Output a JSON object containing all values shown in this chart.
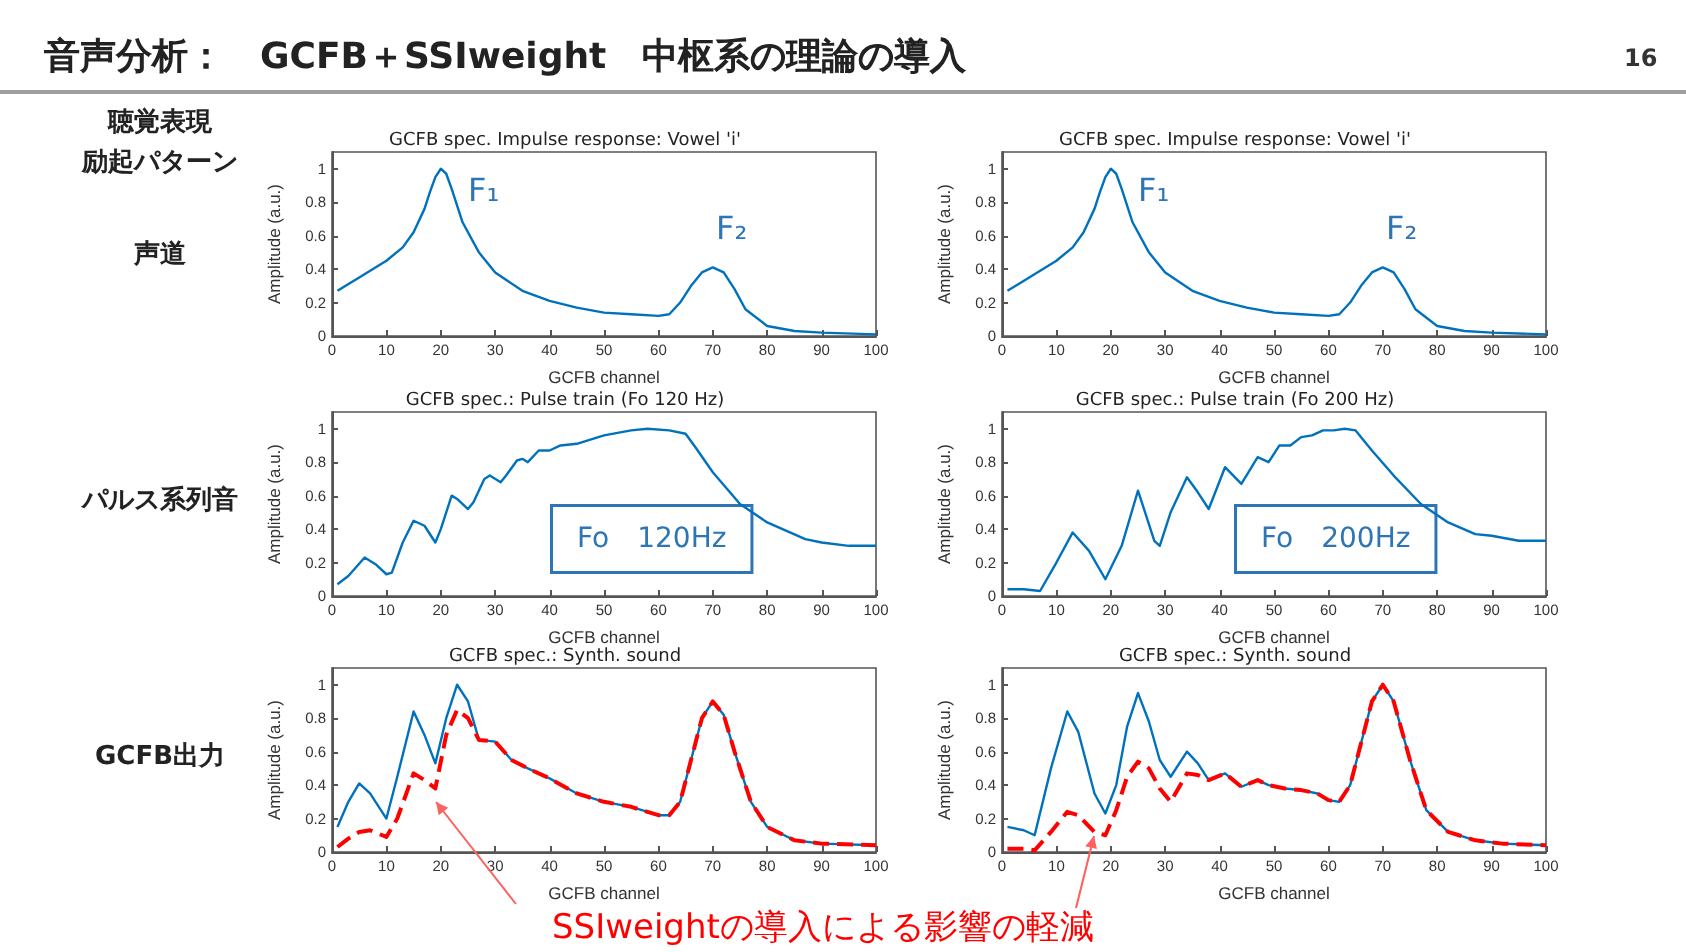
{
  "chart_data": [
    {
      "type": "line",
      "title": "GCFB spec. Impulse response: Vowel 'i'",
      "xlabel": "GCFB channel",
      "ylabel": "Amplitude (a.u.)",
      "xlim": [
        0,
        100
      ],
      "xticks": [
        0,
        10,
        20,
        30,
        40,
        50,
        60,
        70,
        80,
        90,
        100
      ],
      "ylim": [
        0,
        1.1
      ],
      "yticks": [
        0,
        0.2,
        0.4,
        0.6,
        0.8,
        1
      ],
      "grid": false,
      "marker": "none",
      "annotations": [
        "音声分析：　GCFB＋SSIweight　中枢系の理論の導入",
        "16",
        "聴覚表現",
        "励起パターン",
        "声道",
        "F₁",
        "F₂"
      ],
      "series": [
        {
          "color": "#0072bd",
          "line_style": "solid",
          "x": [
            1,
            5,
            10,
            13,
            15,
            17,
            18,
            19,
            20,
            21,
            22,
            24,
            27,
            30,
            35,
            40,
            45,
            50,
            55,
            60,
            62,
            64,
            66,
            68,
            70,
            72,
            74,
            76,
            80,
            85,
            90,
            100
          ],
          "values": [
            0.27,
            0.35,
            0.45,
            0.53,
            0.62,
            0.76,
            0.86,
            0.95,
            1.0,
            0.97,
            0.88,
            0.68,
            0.5,
            0.38,
            0.27,
            0.21,
            0.17,
            0.14,
            0.13,
            0.12,
            0.13,
            0.2,
            0.3,
            0.38,
            0.41,
            0.38,
            0.28,
            0.16,
            0.06,
            0.03,
            0.02,
            0.01
          ]
        }
      ]
    },
    {
      "type": "line",
      "title": "GCFB spec. Impulse response: Vowel 'i'",
      "xlabel": "GCFB channel",
      "ylabel": "Amplitude (a.u.)",
      "xlim": [
        0,
        100
      ],
      "xticks": [
        0,
        10,
        20,
        30,
        40,
        50,
        60,
        70,
        80,
        90,
        100
      ],
      "ylim": [
        0,
        1.1
      ],
      "yticks": [
        0,
        0.2,
        0.4,
        0.6,
        0.8,
        1
      ],
      "grid": false,
      "marker": "none",
      "annotations": [
        "F₁",
        "F₂"
      ],
      "series": [
        {
          "color": "#0072bd",
          "line_style": "solid",
          "x": [
            1,
            5,
            10,
            13,
            15,
            17,
            18,
            19,
            20,
            21,
            22,
            24,
            27,
            30,
            35,
            40,
            45,
            50,
            55,
            60,
            62,
            64,
            66,
            68,
            70,
            72,
            74,
            76,
            80,
            85,
            90,
            100
          ],
          "values": [
            0.27,
            0.35,
            0.45,
            0.53,
            0.62,
            0.76,
            0.86,
            0.95,
            1.0,
            0.97,
            0.88,
            0.68,
            0.5,
            0.38,
            0.27,
            0.21,
            0.17,
            0.14,
            0.13,
            0.12,
            0.13,
            0.2,
            0.3,
            0.38,
            0.41,
            0.38,
            0.28,
            0.16,
            0.06,
            0.03,
            0.02,
            0.01
          ]
        }
      ]
    },
    {
      "type": "line",
      "title": "GCFB spec.: Pulse train (Fo 120 Hz)",
      "xlabel": "GCFB channel",
      "ylabel": "Amplitude (a.u.)",
      "xlim": [
        0,
        100
      ],
      "xticks": [
        0,
        10,
        20,
        30,
        40,
        50,
        60,
        70,
        80,
        90,
        100
      ],
      "ylim": [
        0,
        1.1
      ],
      "yticks": [
        0,
        0.2,
        0.4,
        0.6,
        0.8,
        1
      ],
      "grid": false,
      "marker": "none",
      "annotations": [
        "パルス系列音",
        "Fo　120Hz"
      ],
      "series": [
        {
          "color": "#0072bd",
          "line_style": "solid",
          "x": [
            1,
            3,
            6,
            8,
            10,
            11,
            13,
            15,
            17,
            19,
            20,
            22,
            23,
            25,
            26,
            28,
            29,
            31,
            32,
            34,
            35,
            36,
            38,
            40,
            42,
            45,
            50,
            55,
            58,
            62,
            65,
            67,
            70,
            75,
            80,
            87,
            90,
            95,
            100
          ],
          "values": [
            0.07,
            0.12,
            0.23,
            0.19,
            0.13,
            0.14,
            0.32,
            0.45,
            0.42,
            0.32,
            0.4,
            0.6,
            0.58,
            0.52,
            0.56,
            0.7,
            0.72,
            0.68,
            0.72,
            0.81,
            0.82,
            0.8,
            0.87,
            0.87,
            0.9,
            0.91,
            0.96,
            0.99,
            1.0,
            0.99,
            0.97,
            0.88,
            0.74,
            0.55,
            0.44,
            0.34,
            0.32,
            0.3,
            0.3
          ]
        }
      ]
    },
    {
      "type": "line",
      "title": "GCFB spec.: Pulse train (Fo 200 Hz)",
      "xlabel": "GCFB channel",
      "ylabel": "Amplitude (a.u.)",
      "xlim": [
        0,
        100
      ],
      "xticks": [
        0,
        10,
        20,
        30,
        40,
        50,
        60,
        70,
        80,
        90,
        100
      ],
      "ylim": [
        0,
        1.1
      ],
      "yticks": [
        0,
        0.2,
        0.4,
        0.6,
        0.8,
        1
      ],
      "grid": false,
      "marker": "none",
      "annotations": [
        "Fo　200Hz"
      ],
      "series": [
        {
          "color": "#0072bd",
          "line_style": "solid",
          "x": [
            1,
            4,
            7,
            10,
            13,
            16,
            19,
            22,
            25,
            28,
            29,
            31,
            34,
            36,
            38,
            41,
            44,
            47,
            49,
            51,
            53,
            55,
            57,
            59,
            61,
            63,
            65,
            68,
            72,
            77,
            82,
            87,
            90,
            95,
            100
          ],
          "values": [
            0.04,
            0.04,
            0.03,
            0.2,
            0.38,
            0.27,
            0.1,
            0.3,
            0.63,
            0.33,
            0.3,
            0.5,
            0.71,
            0.62,
            0.52,
            0.77,
            0.67,
            0.83,
            0.8,
            0.9,
            0.9,
            0.95,
            0.96,
            0.99,
            0.99,
            1.0,
            0.99,
            0.87,
            0.72,
            0.55,
            0.44,
            0.37,
            0.36,
            0.33,
            0.33
          ]
        }
      ]
    },
    {
      "type": "line",
      "title": "GCFB spec.: Synth. sound",
      "xlabel": "GCFB channel",
      "ylabel": "Amplitude (a.u.)",
      "xlim": [
        0,
        100
      ],
      "xticks": [
        0,
        10,
        20,
        30,
        40,
        50,
        60,
        70,
        80,
        90,
        100
      ],
      "ylim": [
        0,
        1.1
      ],
      "yticks": [
        0,
        0.2,
        0.4,
        0.6,
        0.8,
        1
      ],
      "grid": false,
      "marker": "none",
      "annotations": [
        "GCFB出力",
        "SSIweightの導入による影響の軽減"
      ],
      "series": [
        {
          "color": "#0072bd",
          "line_style": "solid",
          "x": [
            1,
            3,
            5,
            7,
            10,
            12,
            15,
            17,
            19,
            21,
            23,
            25,
            27,
            30,
            33,
            36,
            40,
            45,
            50,
            55,
            60,
            62,
            64,
            66,
            68,
            70,
            72,
            74,
            77,
            80,
            85,
            90,
            100
          ],
          "values": [
            0.15,
            0.3,
            0.41,
            0.35,
            0.2,
            0.45,
            0.84,
            0.7,
            0.53,
            0.8,
            1.0,
            0.9,
            0.67,
            0.66,
            0.55,
            0.5,
            0.44,
            0.35,
            0.3,
            0.27,
            0.22,
            0.22,
            0.3,
            0.55,
            0.8,
            0.9,
            0.82,
            0.6,
            0.3,
            0.15,
            0.07,
            0.05,
            0.04
          ]
        },
        {
          "color": "#ff0000",
          "line_style": "dashed",
          "x": [
            1,
            3,
            5,
            7,
            10,
            12,
            15,
            17,
            19,
            21,
            23,
            25,
            27,
            30,
            33,
            36,
            40,
            45,
            50,
            55,
            60,
            62,
            64,
            66,
            68,
            70,
            72,
            74,
            77,
            80,
            85,
            90,
            100
          ],
          "values": [
            0.03,
            0.08,
            0.12,
            0.13,
            0.09,
            0.2,
            0.47,
            0.43,
            0.38,
            0.7,
            0.85,
            0.8,
            0.67,
            0.66,
            0.55,
            0.5,
            0.44,
            0.35,
            0.3,
            0.27,
            0.22,
            0.22,
            0.3,
            0.55,
            0.8,
            0.9,
            0.82,
            0.6,
            0.3,
            0.15,
            0.07,
            0.05,
            0.04
          ]
        }
      ]
    },
    {
      "type": "line",
      "title": "GCFB spec.: Synth. sound",
      "xlabel": "GCFB channel",
      "ylabel": "Amplitude (a.u.)",
      "xlim": [
        0,
        100
      ],
      "xticks": [
        0,
        10,
        20,
        30,
        40,
        50,
        60,
        70,
        80,
        90,
        100
      ],
      "ylim": [
        0,
        1.1
      ],
      "yticks": [
        0,
        0.2,
        0.4,
        0.6,
        0.8,
        1
      ],
      "grid": false,
      "marker": "none",
      "series": [
        {
          "color": "#0072bd",
          "line_style": "solid",
          "x": [
            1,
            4,
            6,
            9,
            12,
            14,
            17,
            19,
            21,
            23,
            25,
            27,
            29,
            31,
            34,
            36,
            38,
            41,
            44,
            47,
            49,
            52,
            55,
            58,
            60,
            62,
            64,
            66,
            68,
            70,
            72,
            75,
            78,
            82,
            87,
            92,
            100
          ],
          "values": [
            0.15,
            0.13,
            0.1,
            0.5,
            0.84,
            0.72,
            0.35,
            0.23,
            0.4,
            0.75,
            0.95,
            0.78,
            0.55,
            0.45,
            0.6,
            0.53,
            0.43,
            0.47,
            0.39,
            0.43,
            0.4,
            0.38,
            0.37,
            0.35,
            0.31,
            0.3,
            0.4,
            0.65,
            0.9,
            1.0,
            0.9,
            0.55,
            0.25,
            0.12,
            0.07,
            0.05,
            0.04
          ]
        },
        {
          "color": "#ff0000",
          "line_style": "dashed",
          "x": [
            1,
            4,
            6,
            9,
            12,
            14,
            17,
            19,
            21,
            23,
            25,
            27,
            29,
            31,
            34,
            36,
            38,
            41,
            44,
            47,
            49,
            52,
            55,
            58,
            60,
            62,
            64,
            66,
            68,
            70,
            72,
            75,
            78,
            82,
            87,
            92,
            100
          ],
          "values": [
            0.02,
            0.02,
            0.01,
            0.12,
            0.24,
            0.22,
            0.12,
            0.1,
            0.25,
            0.45,
            0.54,
            0.5,
            0.38,
            0.3,
            0.47,
            0.46,
            0.43,
            0.47,
            0.39,
            0.43,
            0.4,
            0.38,
            0.37,
            0.35,
            0.31,
            0.3,
            0.4,
            0.65,
            0.9,
            1.0,
            0.9,
            0.55,
            0.25,
            0.12,
            0.07,
            0.05,
            0.04
          ]
        }
      ]
    }
  ]
}
